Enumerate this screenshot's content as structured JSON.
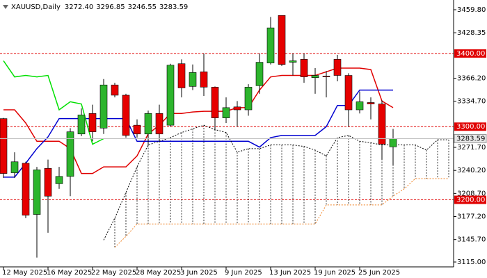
{
  "chart_data": {
    "type": "candlestick",
    "symbol": "XAUUSD,Daily",
    "ohlc_text": [
      "3272.40",
      "3296.85",
      "3246.55",
      "3283.59"
    ],
    "categories": [
      "12 May 2025",
      null,
      null,
      null,
      "16 May 2025",
      null,
      null,
      null,
      "22 May 2025",
      null,
      null,
      null,
      "28 May 2025",
      null,
      null,
      null,
      "3 Jun 2025",
      null,
      null,
      null,
      "9 Jun 2025",
      null,
      null,
      null,
      "13 Jun 2025",
      null,
      null,
      null,
      "19 Jun 2025",
      null,
      null,
      null,
      "25 Jun 2025",
      null,
      null,
      null,
      null,
      null,
      null,
      null,
      null
    ],
    "open": [
      3311,
      3237,
      3250,
      3180,
      3243,
      3222,
      3232,
      3290,
      3318,
      3298,
      3357,
      3343,
      3302,
      3290,
      3318,
      3302,
      3386,
      3355,
      3375,
      3354,
      3312,
      3327,
      3323,
      3356,
      3387,
      3452,
      3388,
      3392,
      3367,
      3369,
      3392,
      3370,
      3323,
      3333,
      3331,
      3272.4,
      null,
      null,
      null,
      null,
      null
    ],
    "high": [
      3312,
      3265,
      3252,
      3245,
      3255,
      3245,
      3298,
      3325,
      3330,
      3365,
      3360,
      3345,
      3310,
      3322,
      3330,
      3386,
      3392,
      3385,
      3400,
      3355,
      3340,
      3335,
      3358,
      3400,
      3450,
      3452,
      3400,
      3400,
      3380,
      3376,
      3398,
      3373,
      3348,
      3340,
      3336,
      3296.85,
      null,
      null,
      null,
      null,
      null
    ],
    "low": [
      3230,
      3230,
      3175,
      3121,
      3155,
      3215,
      3205,
      3287,
      3280,
      3290,
      3340,
      3285,
      3285,
      3275,
      3280,
      3300,
      3340,
      3350,
      3342,
      3295,
      3305,
      3300,
      3315,
      3345,
      3385,
      3383,
      3370,
      3360,
      3345,
      3340,
      3362,
      3300,
      3318,
      3310,
      3255,
      3246.55,
      null,
      null,
      null,
      null,
      null
    ],
    "close": [
      3236,
      3252,
      3179,
      3241,
      3205,
      3232,
      3293,
      3316,
      3293,
      3357,
      3343,
      3288,
      3290,
      3318,
      3290,
      3384,
      3353,
      3374,
      3354,
      3312,
      3326,
      3323,
      3354,
      3388,
      3435,
      3385,
      3390,
      3368,
      3370,
      3368,
      3370,
      3323,
      3334,
      3331,
      3276,
      3283.59,
      null,
      null,
      null,
      null,
      null
    ],
    "up_color": "#2db52d",
    "down_color": "#e60000",
    "series": [
      {
        "color": "#e00000",
        "style": "solid",
        "values": [
          3323,
          3323,
          3305,
          3280,
          3280,
          3280,
          3270,
          3236,
          3236,
          3245,
          3245,
          3245,
          3260,
          3290,
          3302,
          3318,
          3318,
          3320,
          3321,
          3321,
          3321,
          3326,
          3326,
          3350,
          3368,
          3370,
          3370,
          3370,
          3370,
          3375,
          3380,
          3380,
          3380,
          3378,
          3335,
          3326,
          null,
          null,
          null,
          null,
          null
        ]
      },
      {
        "color": "#0000d0",
        "style": "solid",
        "values": [
          3231,
          3231,
          3250,
          3270,
          3286,
          3311,
          3311,
          3311,
          3311,
          3311,
          3311,
          3311,
          3280,
          3280,
          3280,
          3280,
          3280,
          3280,
          3280,
          3280,
          3280,
          3280,
          3280,
          3272,
          3285,
          3288,
          3288,
          3288,
          3288,
          3300,
          3329,
          3329,
          3350,
          3350,
          3350,
          3350,
          null,
          null,
          null,
          null,
          null
        ]
      },
      {
        "color": "#00e000",
        "style": "solid",
        "values": [
          3390,
          3368,
          3370,
          3368,
          3370,
          3323,
          3334,
          3331,
          3276,
          3283.59,
          null,
          null,
          null,
          null,
          null,
          null,
          null,
          null,
          null,
          null,
          null,
          null,
          null,
          null,
          null,
          null,
          null,
          null,
          null,
          null,
          null,
          null,
          null,
          null,
          null,
          null,
          null,
          null,
          null,
          null,
          null
        ]
      },
      {
        "color": "#000000",
        "style": "dotted",
        "values": [
          null,
          null,
          null,
          null,
          null,
          null,
          null,
          null,
          null,
          3145,
          3175,
          3210,
          3245,
          3275,
          3280,
          3285,
          3292,
          3297,
          3302,
          3296,
          3292,
          3265,
          3270,
          3270,
          3275,
          3275,
          3275,
          3273,
          3268,
          3260,
          3285,
          3288,
          3280,
          3278,
          3275,
          3275,
          3275,
          3275,
          3268,
          3282,
          3282
        ]
      },
      {
        "color": "#f08020",
        "style": "dotted",
        "values": [
          null,
          null,
          null,
          null,
          null,
          null,
          null,
          null,
          null,
          null,
          3135,
          3150,
          3167,
          3167,
          3167,
          3167,
          3167,
          3167,
          3167,
          3167,
          3167,
          3167,
          3167,
          3167,
          3167,
          3167,
          3167,
          3167,
          3167,
          3193,
          3193,
          3193,
          3193,
          3193,
          3193,
          3205,
          3215,
          3229,
          3229,
          3229,
          3229
        ]
      }
    ],
    "ylim": [
      3115,
      3459.8
    ],
    "yticks": [
      {
        "value": 3459.8,
        "label": "3459.80"
      },
      {
        "value": 3428.35,
        "label": "3428.35"
      },
      {
        "value": 3366.2,
        "label": "3366.20"
      },
      {
        "value": 3334.7,
        "label": "3334.70"
      },
      {
        "value": 3271.7,
        "label": "3271.70"
      },
      {
        "value": 3240.2,
        "label": "3240.20"
      },
      {
        "value": 3208.7,
        "label": "3208.70"
      },
      {
        "value": 3177.2,
        "label": "3177.20"
      },
      {
        "value": 3145.7,
        "label": "3145.70"
      },
      {
        "value": 3115,
        "label": "3115.00"
      }
    ],
    "levels": [
      {
        "value": 3400,
        "label": "3400.00",
        "color": "#e00000"
      },
      {
        "value": 3300,
        "label": "3300.00",
        "color": "#e00000"
      },
      {
        "value": 3200,
        "label": "3200.00",
        "color": "#e00000"
      }
    ],
    "current_price": {
      "value": 3283.59,
      "label": "3283.59"
    }
  }
}
